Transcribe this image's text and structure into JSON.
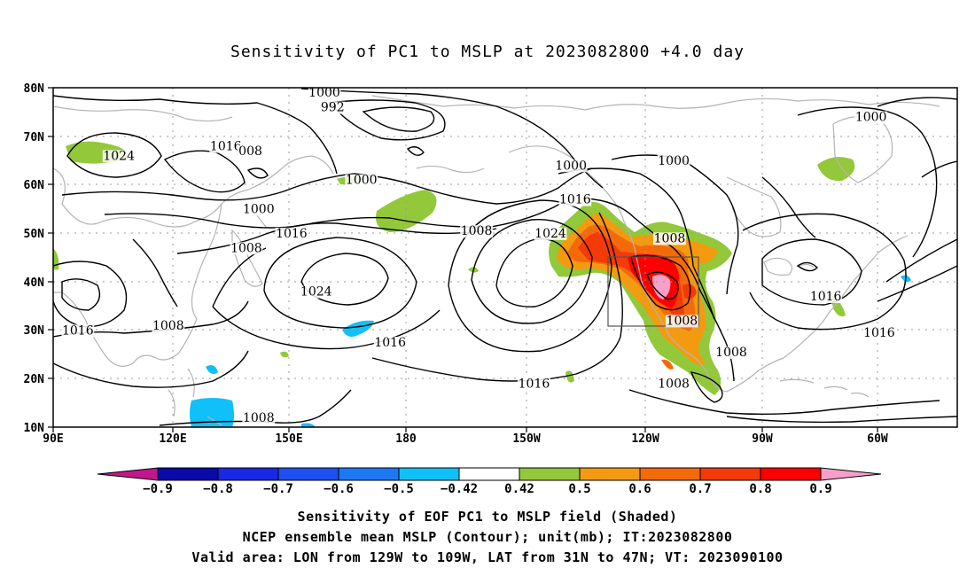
{
  "title": "Sensitivity of PC1 to MSLP at 2023082800 +4.0 day",
  "axes": {
    "lat_labels": [
      "80N",
      "70N",
      "60N",
      "50N",
      "40N",
      "30N",
      "20N",
      "10N"
    ],
    "lon_labels": [
      "90E",
      "120E",
      "150E",
      "180",
      "150W",
      "120W",
      "90W",
      "60W"
    ]
  },
  "contour_labels": [
    {
      "text": "1000",
      "lon": 156,
      "lat": 78.5
    },
    {
      "text": "992",
      "lon": 158,
      "lat": 75.5
    },
    {
      "text": "1024",
      "lon": 106,
      "lat": 65.5
    },
    {
      "text": "1016",
      "lon": 132,
      "lat": 67.5
    },
    {
      "text": "008",
      "lon": 138,
      "lat": 66.5
    },
    {
      "text": "1000",
      "lon": 165,
      "lat": 60.5
    },
    {
      "text": "1000",
      "lon": 140,
      "lat": 54.5
    },
    {
      "text": "1016",
      "lon": 148,
      "lat": 49.5
    },
    {
      "text": "1008",
      "lon": 193,
      "lat": 50.0
    },
    {
      "text": "1008",
      "lon": 137,
      "lat": 46.5
    },
    {
      "text": "1024",
      "lon": 154,
      "lat": 37.5
    },
    {
      "text": "1016",
      "lon": 96,
      "lat": 29.5
    },
    {
      "text": "1008",
      "lon": 118,
      "lat": 30.5
    },
    {
      "text": "1016",
      "lon": 172,
      "lat": 27.0
    },
    {
      "text": "1016",
      "lon": 207,
      "lat": 18.5
    },
    {
      "text": "1008",
      "lon": 140,
      "lat": 11.5
    },
    {
      "text": "1000",
      "lon": 216,
      "lat": 63.5
    },
    {
      "text": "1016",
      "lon": 217,
      "lat": 56.5
    },
    {
      "text": "1024",
      "lon": 211,
      "lat": 49.5
    },
    {
      "text": "1000",
      "lon": 241,
      "lat": 64.5
    },
    {
      "text": "1008",
      "lon": 240,
      "lat": 48.5
    },
    {
      "text": "1008",
      "lon": 243,
      "lat": 31.5
    },
    {
      "text": "1008",
      "lon": 255,
      "lat": 25.0
    },
    {
      "text": "1008",
      "lon": 241,
      "lat": 18.5
    },
    {
      "text": "1016",
      "lon": 278,
      "lat": 36.5
    },
    {
      "text": "1016",
      "lon": 291,
      "lat": 29.0
    },
    {
      "text": "1000",
      "lon": 289,
      "lat": 73.5
    }
  ],
  "colorbar": {
    "labels": [
      "−0.9",
      "−0.8",
      "−0.7",
      "−0.6",
      "−0.5",
      "−0.42",
      "0.42",
      "0.5",
      "0.6",
      "0.7",
      "0.8",
      "0.9"
    ],
    "colors": [
      "#0a0aa8",
      "#1a28e6",
      "#1e50f0",
      "#1e78f5",
      "#10c0f8",
      "#ffffff",
      "#92c83a",
      "#f49a10",
      "#f46a0a",
      "#f43a08",
      "#ff0000"
    ],
    "low_end_color": "#c0188a",
    "high_end_color": "#f4a0c8"
  },
  "caption": {
    "line1": "Sensitivity of EOF PC1 to MSLP field (Shaded)",
    "line2": "NCEP ensemble mean MSLP (Contour); unit(mb); IT:2023082800",
    "line3": "Valid area: LON from 129W to 109W, LAT from 31N to 47N; VT: 2023090100"
  },
  "valid_area": {
    "lon_min": -129,
    "lon_max": -109,
    "lat_min": 31,
    "lat_max": 47
  },
  "colors": {
    "coast": "#b4b4b4",
    "grid": "#9a9a9a",
    "contour": "#000000"
  }
}
